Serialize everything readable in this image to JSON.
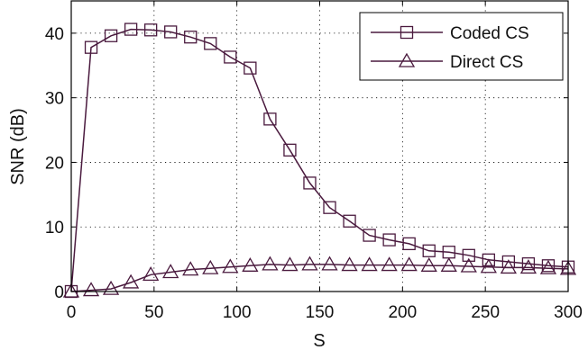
{
  "chart_data": {
    "type": "line",
    "title": "",
    "xlabel": "S",
    "ylabel": "SNR (dB)",
    "xlim": [
      0,
      300
    ],
    "ylim": [
      0,
      45
    ],
    "xticks": [
      "0",
      "50",
      "100",
      "150",
      "200",
      "250",
      "300"
    ],
    "yticks": [
      "0",
      "10",
      "20",
      "30",
      "40"
    ],
    "grid": true,
    "legend_position": "top-right",
    "line_color": "#4a1a3e",
    "series": [
      {
        "name": "Coded CS",
        "marker": "square",
        "points": [
          [
            0,
            0
          ],
          [
            12,
            37.8
          ],
          [
            24,
            39.6
          ],
          [
            36,
            40.6
          ],
          [
            48,
            40.5
          ],
          [
            60,
            40.2
          ],
          [
            72,
            39.4
          ],
          [
            84,
            38.4
          ],
          [
            96,
            36.3
          ],
          [
            108,
            34.6
          ],
          [
            120,
            26.7
          ],
          [
            132,
            21.9
          ],
          [
            144,
            16.8
          ],
          [
            156,
            13.0
          ],
          [
            168,
            10.9
          ],
          [
            180,
            8.7
          ],
          [
            192,
            8.0
          ],
          [
            204,
            7.4
          ],
          [
            216,
            6.3
          ],
          [
            228,
            6.1
          ],
          [
            240,
            5.6
          ],
          [
            252,
            4.9
          ],
          [
            264,
            4.6
          ],
          [
            276,
            4.3
          ],
          [
            288,
            4.0
          ],
          [
            300,
            3.8
          ]
        ]
      },
      {
        "name": "Direct CS",
        "marker": "triangle",
        "points": [
          [
            0,
            0
          ],
          [
            12,
            0.2
          ],
          [
            24,
            0.4
          ],
          [
            36,
            1.4
          ],
          [
            48,
            2.6
          ],
          [
            60,
            3.0
          ],
          [
            72,
            3.4
          ],
          [
            84,
            3.6
          ],
          [
            96,
            3.8
          ],
          [
            108,
            4.0
          ],
          [
            120,
            4.2
          ],
          [
            132,
            4.1
          ],
          [
            144,
            4.2
          ],
          [
            156,
            4.2
          ],
          [
            168,
            4.1
          ],
          [
            180,
            4.1
          ],
          [
            192,
            4.1
          ],
          [
            204,
            4.1
          ],
          [
            216,
            4.0
          ],
          [
            228,
            4.0
          ],
          [
            240,
            3.9
          ],
          [
            252,
            3.8
          ],
          [
            264,
            3.7
          ],
          [
            276,
            3.7
          ],
          [
            288,
            3.6
          ],
          [
            300,
            3.5
          ]
        ]
      }
    ]
  }
}
